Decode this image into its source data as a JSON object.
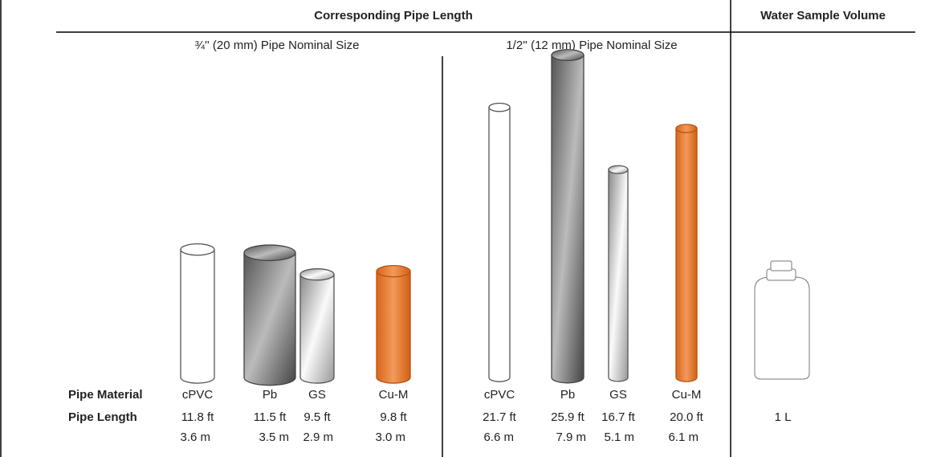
{
  "header": {
    "title": "Corresponding Pipe Length",
    "volume_title": "Water Sample Volume"
  },
  "groups": [
    {
      "title": "¾'' (20 mm) Pipe Nominal Size",
      "pipes": [
        {
          "material": "cPVC",
          "ft": "11.8 ft",
          "m": "3.6 m"
        },
        {
          "material": "Pb",
          "ft": "11.5 ft",
          "m": "3.5 m"
        },
        {
          "material": "GS",
          "ft": "9.5 ft",
          "m": "2.9 m"
        },
        {
          "material": "Cu-M",
          "ft": "9.8 ft",
          "m": "3.0 m"
        }
      ]
    },
    {
      "title": "1/2'' (12 mm) Pipe Nominal Size",
      "pipes": [
        {
          "material": "cPVC",
          "ft": "21.7 ft",
          "m": "6.6 m"
        },
        {
          "material": "Pb",
          "ft": "25.9 ft",
          "m": "7.9 m"
        },
        {
          "material": "GS",
          "ft": "16.7 ft",
          "m": "5.1 m"
        },
        {
          "material": "Cu-M",
          "ft": "20.0 ft",
          "m": "6.1 m"
        }
      ]
    }
  ],
  "row_labels": {
    "material": "Pipe Material",
    "length": "Pipe Length"
  },
  "sample": {
    "volume": "1 L"
  }
}
